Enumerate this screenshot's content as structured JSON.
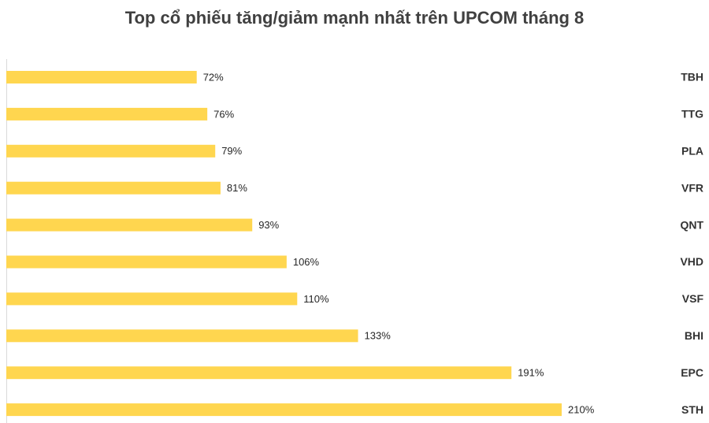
{
  "chart_data": {
    "type": "bar",
    "orientation": "horizontal",
    "title": "Top cổ phiếu tăng/giảm mạnh nhất trên UPCOM tháng 8",
    "categories": [
      "TBH",
      "TTG",
      "PLA",
      "VFR",
      "QNT",
      "VHD",
      "VSF",
      "BHI",
      "EPC",
      "STH"
    ],
    "values": [
      72,
      76,
      79,
      81,
      93,
      106,
      110,
      133,
      191,
      210
    ],
    "value_labels": [
      "72%",
      "76%",
      "79%",
      "81%",
      "93%",
      "106%",
      "110%",
      "133%",
      "191%",
      "210%"
    ],
    "color": "#ffd64f"
  }
}
